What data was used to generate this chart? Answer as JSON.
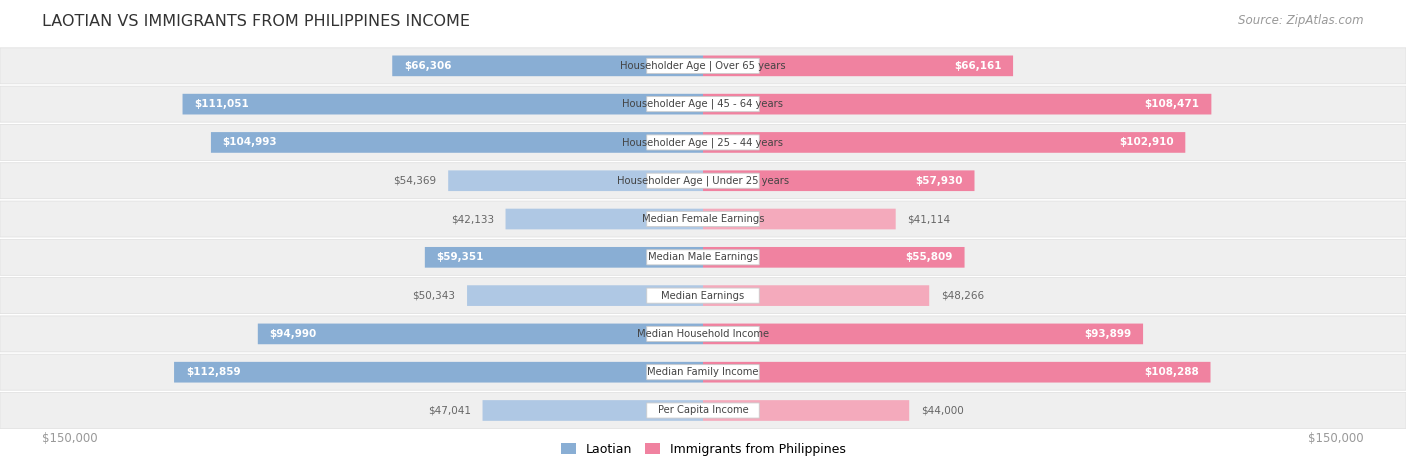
{
  "title": "LAOTIAN VS IMMIGRANTS FROM PHILIPPINES INCOME",
  "source": "Source: ZipAtlas.com",
  "categories": [
    "Per Capita Income",
    "Median Family Income",
    "Median Household Income",
    "Median Earnings",
    "Median Male Earnings",
    "Median Female Earnings",
    "Householder Age | Under 25 years",
    "Householder Age | 25 - 44 years",
    "Householder Age | 45 - 64 years",
    "Householder Age | Over 65 years"
  ],
  "laotian_values": [
    47041,
    112859,
    94990,
    50343,
    59351,
    42133,
    54369,
    104993,
    111051,
    66306
  ],
  "philippines_values": [
    44000,
    108288,
    93899,
    48266,
    55809,
    41114,
    57930,
    102910,
    108471,
    66161
  ],
  "laotian_labels": [
    "$47,041",
    "$112,859",
    "$94,990",
    "$50,343",
    "$59,351",
    "$42,133",
    "$54,369",
    "$104,993",
    "$111,051",
    "$66,306"
  ],
  "philippines_labels": [
    "$44,000",
    "$108,288",
    "$93,899",
    "$48,266",
    "$55,809",
    "$41,114",
    "$57,930",
    "$102,910",
    "$108,471",
    "$66,161"
  ],
  "laotian_color": "#89aed4",
  "philippines_color": "#f082a0",
  "laotian_color_light": "#afc8e4",
  "philippines_color_light": "#f4aabc",
  "max_value": 150000,
  "background_color": "#ffffff",
  "row_bg_even": "#f2f2f2",
  "row_bg_odd": "#e8e8e8",
  "legend_laotian": "Laotian",
  "legend_philippines": "Immigrants from Philippines",
  "xlabel_left": "$150,000",
  "xlabel_right": "$150,000",
  "inside_threshold": 55000
}
